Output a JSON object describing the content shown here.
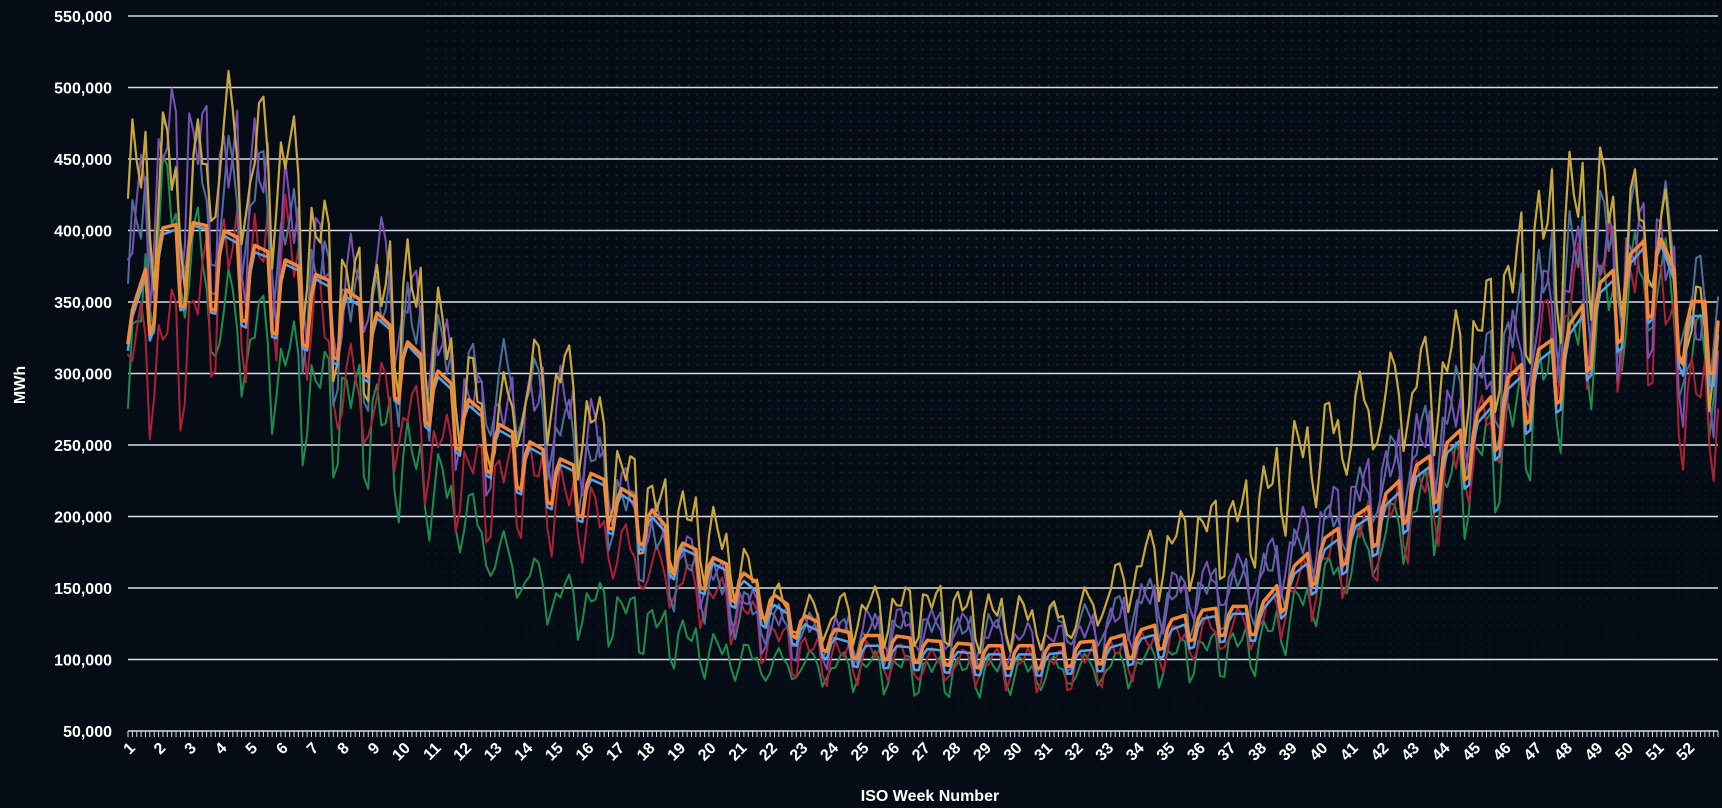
{
  "chart_data": {
    "type": "line",
    "xlabel": "ISO Week Number",
    "ylabel": "MWh",
    "ylim": [
      50000,
      550000
    ],
    "xlim": [
      1,
      53
    ],
    "yticks": [
      50000,
      100000,
      150000,
      200000,
      250000,
      300000,
      350000,
      400000,
      450000,
      500000,
      550000
    ],
    "ytick_labels": [
      "50,000",
      "100,000",
      "150,000",
      "200,000",
      "250,000",
      "300,000",
      "350,000",
      "400,000",
      "450,000",
      "500,000",
      "550,000"
    ],
    "xtick_labels": [
      "1",
      "2",
      "3",
      "4",
      "5",
      "6",
      "7",
      "8",
      "9",
      "10",
      "11",
      "12",
      "13",
      "14",
      "15",
      "16",
      "17",
      "18",
      "19",
      "20",
      "21",
      "22",
      "23",
      "24",
      "25",
      "26",
      "27",
      "28",
      "29",
      "30",
      "31",
      "32",
      "33",
      "34",
      "35",
      "36",
      "37",
      "38",
      "39",
      "40",
      "41",
      "42",
      "43",
      "44",
      "45",
      "46",
      "47",
      "48",
      "49",
      "50",
      "51",
      "52"
    ],
    "grid": "horizontal",
    "legend": "none",
    "x": [
      1,
      2,
      3,
      4,
      5,
      6,
      7,
      8,
      9,
      10,
      11,
      12,
      13,
      14,
      15,
      16,
      17,
      18,
      19,
      20,
      21,
      22,
      23,
      24,
      25,
      26,
      27,
      28,
      29,
      30,
      31,
      32,
      33,
      34,
      35,
      36,
      37,
      38,
      39,
      40,
      41,
      42,
      43,
      44,
      45,
      46,
      47,
      48,
      49,
      50,
      51,
      52
    ],
    "series": [
      {
        "color": "#f0883c",
        "width": 3.5,
        "values": [
          330000,
          395000,
          400000,
          395000,
          385000,
          375000,
          365000,
          355000,
          340000,
          320000,
          300000,
          280000,
          262000,
          250000,
          238000,
          228000,
          218000,
          205000,
          180000,
          170000,
          160000,
          145000,
          130000,
          120000,
          115000,
          115000,
          112000,
          110000,
          108000,
          108000,
          108000,
          110000,
          112000,
          118000,
          125000,
          132000,
          135000,
          135000,
          160000,
          180000,
          195000,
          210000,
          230000,
          245000,
          265000,
          290000,
          310000,
          325000,
          355000,
          375000,
          395000,
          345000
        ]
      },
      {
        "color": "#5aa0e0",
        "width": 2.5,
        "values": [
          325000,
          390000,
          398000,
          392000,
          380000,
          372000,
          362000,
          350000,
          336000,
          318000,
          296000,
          276000,
          258000,
          246000,
          234000,
          224000,
          214000,
          200000,
          176000,
          166000,
          155000,
          138000,
          124000,
          114000,
          108000,
          108000,
          106000,
          104000,
          102000,
          102000,
          102000,
          104000,
          106000,
          112000,
          118000,
          126000,
          130000,
          130000,
          155000,
          172000,
          188000,
          202000,
          222000,
          238000,
          258000,
          282000,
          302000,
          318000,
          348000,
          368000,
          392000,
          335000
        ]
      },
      {
        "color": "#c9a73a",
        "width": 2.2,
        "values": [
          440000,
          455000,
          430000,
          480000,
          460000,
          470000,
          410000,
          370000,
          355000,
          370000,
          340000,
          300000,
          270000,
          300000,
          310000,
          280000,
          240000,
          215000,
          205000,
          195000,
          170000,
          145000,
          135000,
          135000,
          140000,
          140000,
          142000,
          140000,
          135000,
          135000,
          130000,
          135000,
          150000,
          170000,
          185000,
          195000,
          200000,
          215000,
          245000,
          260000,
          275000,
          290000,
          300000,
          310000,
          330000,
          360000,
          400000,
          420000,
          430000,
          410000,
          420000,
          340000
        ]
      },
      {
        "color": "#7b4fb4",
        "width": 2,
        "values": [
          390000,
          460000,
          470000,
          445000,
          450000,
          420000,
          390000,
          360000,
          390000,
          360000,
          330000,
          290000,
          270000,
          280000,
          285000,
          270000,
          225000,
          200000,
          180000,
          165000,
          145000,
          130000,
          125000,
          120000,
          125000,
          128000,
          125000,
          125000,
          120000,
          118000,
          115000,
          118000,
          125000,
          140000,
          150000,
          155000,
          160000,
          165000,
          185000,
          200000,
          215000,
          230000,
          250000,
          265000,
          285000,
          310000,
          340000,
          370000,
          380000,
          385000,
          400000,
          330000
        ]
      },
      {
        "color": "#4f6f9a",
        "width": 2,
        "values": [
          380000,
          450000,
          440000,
          430000,
          440000,
          410000,
          380000,
          350000,
          350000,
          340000,
          320000,
          300000,
          300000,
          300000,
          270000,
          250000,
          220000,
          190000,
          170000,
          160000,
          140000,
          130000,
          125000,
          120000,
          120000,
          125000,
          125000,
          122000,
          120000,
          135000,
          130000,
          128000,
          130000,
          145000,
          145000,
          150000,
          155000,
          160000,
          175000,
          190000,
          210000,
          235000,
          250000,
          270000,
          300000,
          320000,
          360000,
          380000,
          400000,
          400000,
          420000,
          360000
        ]
      },
      {
        "color": "#b02035",
        "width": 2,
        "values": [
          320000,
          330000,
          340000,
          390000,
          380000,
          400000,
          360000,
          300000,
          290000,
          280000,
          260000,
          240000,
          230000,
          240000,
          220000,
          210000,
          185000,
          170000,
          160000,
          150000,
          140000,
          120000,
          110000,
          105000,
          105000,
          105000,
          100000,
          100000,
          100000,
          100000,
          100000,
          100000,
          105000,
          110000,
          115000,
          120000,
          125000,
          130000,
          150000,
          170000,
          190000,
          200000,
          220000,
          230000,
          260000,
          280000,
          320000,
          350000,
          380000,
          370000,
          370000,
          290000
        ]
      },
      {
        "color": "#1e8c4e",
        "width": 2,
        "values": [
          290000,
          430000,
          400000,
          350000,
          340000,
          320000,
          300000,
          290000,
          280000,
          250000,
          230000,
          210000,
          180000,
          165000,
          150000,
          145000,
          140000,
          130000,
          120000,
          110000,
          105000,
          100000,
          100000,
          98000,
          98000,
          98000,
          95000,
          95000,
          95000,
          95000,
          95000,
          96000,
          98000,
          100000,
          105000,
          110000,
          112000,
          115000,
          135000,
          155000,
          175000,
          190000,
          210000,
          225000,
          245000,
          265000,
          295000,
          320000,
          350000,
          365000,
          385000,
          320000
        ]
      }
    ]
  }
}
